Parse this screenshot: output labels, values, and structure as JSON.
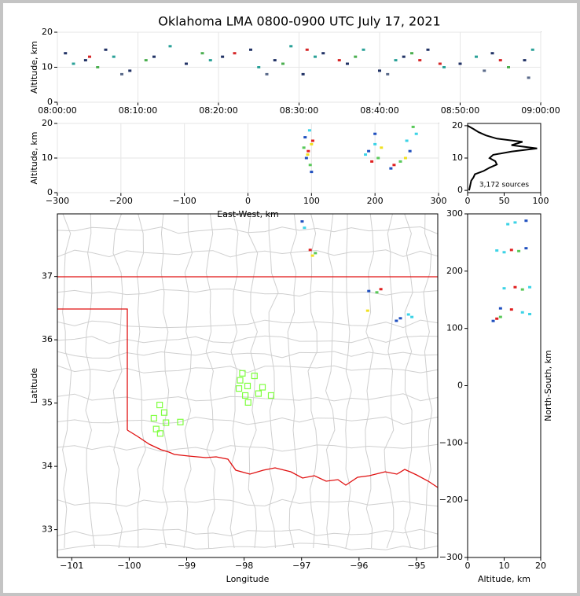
{
  "title": "Oklahoma LMA 0800-0900 UTC July 17, 2021",
  "chart_data": [
    {
      "type": "scatter",
      "ylabel": "Altitude, km",
      "xlim": [
        "08:00:00",
        "09:00:00"
      ],
      "xticks": [
        "08:00:00",
        "08:10:00",
        "08:20:00",
        "08:30:00",
        "08:40:00",
        "08:50:00",
        "09:00:00"
      ],
      "ylim": [
        0,
        20
      ],
      "yticks": [
        0,
        10,
        20
      ],
      "grid": true,
      "series": [
        {
          "color": "#223366",
          "x": [
            "08:01:00",
            "08:03:30",
            "08:06:00",
            "08:09:00",
            "08:12:00",
            "08:16:00",
            "08:20:30",
            "08:24:00",
            "08:27:00",
            "08:30:30",
            "08:33:00",
            "08:36:00",
            "08:40:00",
            "08:43:00",
            "08:46:00",
            "08:50:00",
            "08:54:00",
            "08:58:00"
          ],
          "y": [
            14,
            12,
            15,
            9,
            13,
            11,
            13,
            15,
            12,
            8,
            14,
            11,
            9,
            13,
            15,
            11,
            14,
            12
          ]
        },
        {
          "color": "#2aa198",
          "x": [
            "08:02:00",
            "08:07:00",
            "08:14:00",
            "08:19:00",
            "08:25:00",
            "08:29:00",
            "08:32:00",
            "08:38:00",
            "08:42:00",
            "08:48:00",
            "08:52:00",
            "08:59:00"
          ],
          "y": [
            11,
            13,
            16,
            12,
            10,
            16,
            13,
            15,
            12,
            10,
            13,
            15
          ]
        },
        {
          "color": "#d62728",
          "x": [
            "08:04:00",
            "08:22:00",
            "08:31:00",
            "08:35:00",
            "08:45:00",
            "08:47:30",
            "08:55:00"
          ],
          "y": [
            13,
            14,
            15,
            12,
            12,
            11,
            12
          ]
        },
        {
          "color": "#4caf50",
          "x": [
            "08:05:00",
            "08:11:00",
            "08:18:00",
            "08:28:00",
            "08:37:00",
            "08:44:00",
            "08:56:00"
          ],
          "y": [
            10,
            12,
            14,
            11,
            13,
            14,
            10
          ]
        },
        {
          "color": "#5a6a8a",
          "x": [
            "08:08:00",
            "08:26:00",
            "08:41:00",
            "08:53:00",
            "08:58:30"
          ],
          "y": [
            8,
            8,
            8,
            9,
            7
          ]
        }
      ]
    },
    {
      "type": "scatter",
      "xlabel": "East-West, km",
      "ylabel": "Altitude, km",
      "xlim": [
        -300,
        300
      ],
      "xticks": [
        {
          "value": -300,
          "label": "−300"
        },
        {
          "value": -200,
          "label": "−200"
        },
        {
          "value": -100,
          "label": "−100"
        },
        0,
        100,
        200,
        300
      ],
      "ylim": [
        0,
        20
      ],
      "yticks": [
        0,
        10,
        20
      ],
      "grid": true,
      "series": [
        {
          "color": "#1f4fbf",
          "x": [
            90,
            92,
            100,
            190,
            200,
            225,
            255
          ],
          "y": [
            16,
            10,
            6,
            12,
            17,
            7,
            12
          ]
        },
        {
          "color": "#3cd3e6",
          "x": [
            97,
            200,
            185,
            250,
            265
          ],
          "y": [
            18,
            14,
            11,
            15,
            17
          ]
        },
        {
          "color": "#59c959",
          "x": [
            98,
            88,
            205,
            240,
            260
          ],
          "y": [
            8,
            13,
            10,
            9,
            19
          ]
        },
        {
          "color": "#f0e020",
          "x": [
            100,
            94,
            210,
            248
          ],
          "y": [
            14,
            11,
            13,
            10
          ]
        },
        {
          "color": "#e02020",
          "x": [
            95,
            102,
            195,
            230
          ],
          "y": [
            12,
            15,
            9,
            8
          ]
        }
      ]
    },
    {
      "type": "line",
      "annotation": "3,172 sources",
      "xlim": [
        0,
        100
      ],
      "xticks": [
        0,
        50,
        100
      ],
      "ylim": [
        -0.7,
        20.7
      ],
      "yticks": [
        0,
        10,
        20
      ],
      "grid": false,
      "series": [
        {
          "color": "#000000",
          "x": [
            2,
            3,
            4,
            5,
            8,
            10,
            22,
            30,
            40,
            38,
            30,
            35,
            60,
            95,
            60,
            75,
            40,
            25,
            15,
            8,
            0
          ],
          "y": [
            0,
            1,
            2,
            3,
            4,
            5,
            6,
            7,
            8,
            9,
            10,
            11,
            12,
            13,
            14,
            15,
            16,
            17,
            18,
            19,
            20
          ]
        }
      ]
    },
    {
      "type": "scatter",
      "xlabel": "Longitude",
      "ylabel": "Latitude",
      "xlim": [
        -101.25,
        -94.63
      ],
      "xticks": [
        {
          "value": -101,
          "label": "−101"
        },
        {
          "value": -100,
          "label": "−100"
        },
        {
          "value": -99,
          "label": "−99"
        },
        {
          "value": -98,
          "label": "−98"
        },
        {
          "value": -97,
          "label": "−97"
        },
        {
          "value": -96,
          "label": "−96"
        },
        {
          "value": -95,
          "label": "−95"
        }
      ],
      "ylim": [
        32.56,
        37.99
      ],
      "yticks": [
        33,
        34,
        35,
        36,
        37
      ],
      "grid": false,
      "series": [
        {
          "color": "#1f4fbf",
          "x": [
            -96.99,
            -95.83,
            -95.28,
            -95.35
          ],
          "y": [
            37.87,
            36.77,
            36.34,
            36.3
          ]
        },
        {
          "color": "#3cd3e6",
          "x": [
            -96.95,
            -95.14,
            -95.08
          ],
          "y": [
            37.77,
            36.4,
            36.36
          ]
        },
        {
          "color": "#e02020",
          "x": [
            -96.85,
            -95.62
          ],
          "y": [
            37.42,
            36.8
          ]
        },
        {
          "color": "#f0e020",
          "x": [
            -96.81,
            -95.85
          ],
          "y": [
            37.33,
            36.46
          ]
        },
        {
          "color": "#59c959",
          "x": [
            -96.76,
            -95.69
          ],
          "y": [
            37.37,
            36.75
          ]
        },
        {
          "color": "#7fff3f",
          "marker": "square-open",
          "x": [
            -99.47,
            -99.39,
            -99.57,
            -99.36,
            -99.53,
            -99.46,
            -99.11,
            -98.03,
            -98.07,
            -97.94,
            -98.09,
            -97.82,
            -97.68,
            -97.98,
            -97.75,
            -97.53,
            -97.93
          ],
          "y": [
            34.97,
            34.85,
            34.76,
            34.69,
            34.59,
            34.52,
            34.7,
            35.47,
            35.36,
            35.27,
            35.23,
            35.43,
            35.25,
            35.12,
            35.15,
            35.12,
            35.01
          ]
        }
      ]
    },
    {
      "type": "scatter",
      "xlabel": "Altitude, km",
      "ylabel": "North-South, km",
      "ylabel_side": "right",
      "xlim": [
        0,
        20
      ],
      "xticks": [
        0,
        10,
        20
      ],
      "ylim": [
        -300,
        300
      ],
      "yticks": [
        {
          "value": -300,
          "label": "−300"
        },
        {
          "value": -200,
          "label": "−200"
        },
        {
          "value": -100,
          "label": "−100"
        },
        0,
        100,
        200,
        300
      ],
      "grid": false,
      "series": [
        {
          "color": "#3cd3e6",
          "x": [
            13,
            11,
            10,
            8,
            10,
            17,
            15,
            17
          ],
          "y": [
            285,
            282,
            233,
            236,
            170,
            172,
            128,
            125
          ]
        },
        {
          "color": "#1f4fbf",
          "x": [
            16,
            16,
            9,
            7
          ],
          "y": [
            288,
            240,
            135,
            113
          ]
        },
        {
          "color": "#e02020",
          "x": [
            12,
            13,
            12,
            8
          ],
          "y": [
            237,
            172,
            133,
            117
          ]
        },
        {
          "color": "#59c959",
          "x": [
            14,
            15,
            9
          ],
          "y": [
            235,
            168,
            120
          ]
        }
      ]
    }
  ]
}
